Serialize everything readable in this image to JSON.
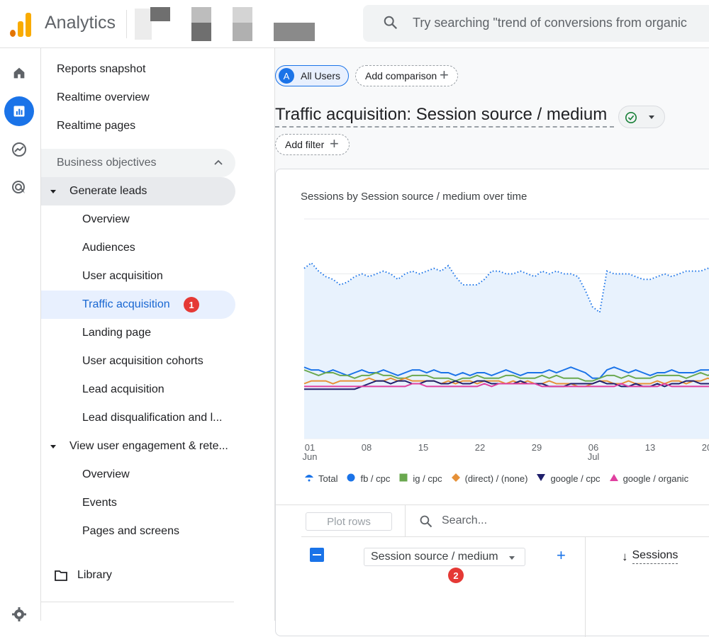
{
  "header": {
    "app_title": "Analytics",
    "search_placeholder": "Try searching \"trend of conversions from organic"
  },
  "rail": {
    "items": [
      {
        "icon": "home-icon"
      },
      {
        "icon": "reports-icon",
        "active": true
      },
      {
        "icon": "explore-icon"
      },
      {
        "icon": "advertising-icon"
      },
      {
        "icon": "settings-icon"
      }
    ]
  },
  "sidenav": {
    "top_items": [
      "Reports snapshot",
      "Realtime overview",
      "Realtime pages"
    ],
    "section_title": "Business objectives",
    "group1_title": "Generate leads",
    "group1_items": [
      "Overview",
      "Audiences",
      "User acquisition",
      "Traffic acquisition",
      "Landing page",
      "User acquisition cohorts",
      "Lead acquisition",
      "Lead disqualification and l..."
    ],
    "active_badge": "1",
    "group2_title": "View user engagement & rete...",
    "group2_items": [
      "Overview",
      "Events",
      "Pages and screens"
    ],
    "library": "Library"
  },
  "main": {
    "segment_avatar": "A",
    "segment_label": "All Users",
    "add_comparison": "Add comparison",
    "title": "Traffic acquisition: Session source / medium",
    "add_filter": "Add filter",
    "chart_title": "Sessions by Session source / medium over time",
    "table": {
      "plot_rows": "Plot rows",
      "search_placeholder": "Search...",
      "dimension": "Session source / medium",
      "dimension_badge": "2",
      "metric_header": "Sessions"
    }
  },
  "chart_data": {
    "type": "line",
    "x_ticks": [
      {
        "day": "01",
        "month": "Jun"
      },
      {
        "day": "08",
        "month": ""
      },
      {
        "day": "15",
        "month": ""
      },
      {
        "day": "22",
        "month": ""
      },
      {
        "day": "29",
        "month": ""
      },
      {
        "day": "06",
        "month": "Jul"
      },
      {
        "day": "13",
        "month": ""
      },
      {
        "day": "20",
        "month": ""
      }
    ],
    "legend_position": "bottom",
    "series": [
      {
        "name": "Total",
        "color": "#1a73e8",
        "style": "dotted-area",
        "values": [
          62,
          64,
          61,
          59,
          58,
          56,
          57,
          59,
          60,
          59,
          60,
          61,
          60,
          58,
          60,
          61,
          60,
          61,
          62,
          61,
          63,
          59,
          56,
          56,
          56,
          58,
          61,
          61,
          60,
          60,
          61,
          60,
          59,
          61,
          60,
          61,
          60,
          60,
          59,
          54,
          48,
          46,
          61,
          60,
          60,
          60,
          59,
          58,
          58,
          59,
          60,
          59,
          60,
          61,
          61,
          61,
          62,
          63,
          60,
          60,
          62
        ]
      },
      {
        "name": "fb / cpc",
        "color": "#1a73e8",
        "style": "circle",
        "values": [
          26,
          25,
          25,
          24,
          25,
          24,
          23,
          24,
          25,
          24,
          24,
          25,
          24,
          23,
          24,
          25,
          25,
          24,
          25,
          24,
          24,
          23,
          24,
          23,
          24,
          24,
          23,
          24,
          25,
          24,
          23,
          24,
          24,
          24,
          25,
          24,
          25,
          26,
          25,
          24,
          22,
          22,
          25,
          26,
          25,
          24,
          25,
          24,
          23,
          24,
          24,
          25,
          24,
          24,
          24,
          25,
          25,
          25,
          26,
          25,
          26
        ]
      },
      {
        "name": "ig / cpc",
        "color": "#6aa84f",
        "style": "square",
        "values": [
          25,
          24,
          23,
          24,
          24,
          23,
          23,
          22,
          23,
          23,
          24,
          23,
          23,
          22,
          22,
          23,
          23,
          23,
          22,
          22,
          22,
          21,
          22,
          22,
          23,
          22,
          22,
          22,
          23,
          23,
          22,
          22,
          22,
          23,
          22,
          23,
          22,
          22,
          22,
          21,
          21,
          22,
          23,
          23,
          22,
          23,
          22,
          22,
          22,
          23,
          23,
          23,
          23,
          22,
          23,
          24,
          23,
          24,
          24,
          24,
          25
        ]
      },
      {
        "name": "(direct) / (none)",
        "color": "#e69138",
        "style": "diamond",
        "values": [
          20,
          21,
          21,
          21,
          20,
          21,
          21,
          21,
          21,
          22,
          21,
          21,
          22,
          21,
          22,
          21,
          21,
          21,
          21,
          20,
          21,
          20,
          21,
          21,
          20,
          21,
          21,
          21,
          20,
          21,
          20,
          21,
          20,
          20,
          21,
          20,
          20,
          20,
          19,
          19,
          20,
          21,
          21,
          20,
          20,
          21,
          20,
          20,
          20,
          21,
          20,
          21,
          21,
          20,
          21,
          21,
          22,
          21,
          21,
          21,
          21
        ]
      },
      {
        "name": "google / cpc",
        "color": "#1f1f6b",
        "style": "triangle-down",
        "values": [
          18,
          18,
          18,
          18,
          18,
          18,
          18,
          18,
          19,
          20,
          21,
          21,
          20,
          21,
          21,
          20,
          20,
          21,
          21,
          20,
          20,
          21,
          20,
          20,
          21,
          21,
          20,
          20,
          20,
          20,
          21,
          20,
          20,
          20,
          19,
          19,
          19,
          20,
          20,
          20,
          20,
          21,
          20,
          20,
          19,
          19,
          20,
          19,
          19,
          20,
          19,
          20,
          20,
          21,
          21,
          20,
          20,
          20,
          20,
          20,
          20
        ]
      },
      {
        "name": "google / organic",
        "color": "#e040a0",
        "style": "triangle-up",
        "values": [
          19,
          19,
          19,
          19,
          19,
          19,
          19,
          19,
          19,
          19,
          19,
          19,
          19,
          19,
          19,
          20,
          20,
          19,
          19,
          19,
          19,
          19,
          19,
          19,
          19,
          20,
          19,
          20,
          20,
          20,
          20,
          20,
          20,
          19,
          19,
          19,
          19,
          19,
          19,
          19,
          19,
          19,
          19,
          19,
          20,
          19,
          19,
          19,
          19,
          19,
          20,
          19,
          19,
          19,
          19,
          19,
          19,
          19,
          18,
          18,
          18
        ]
      }
    ]
  }
}
